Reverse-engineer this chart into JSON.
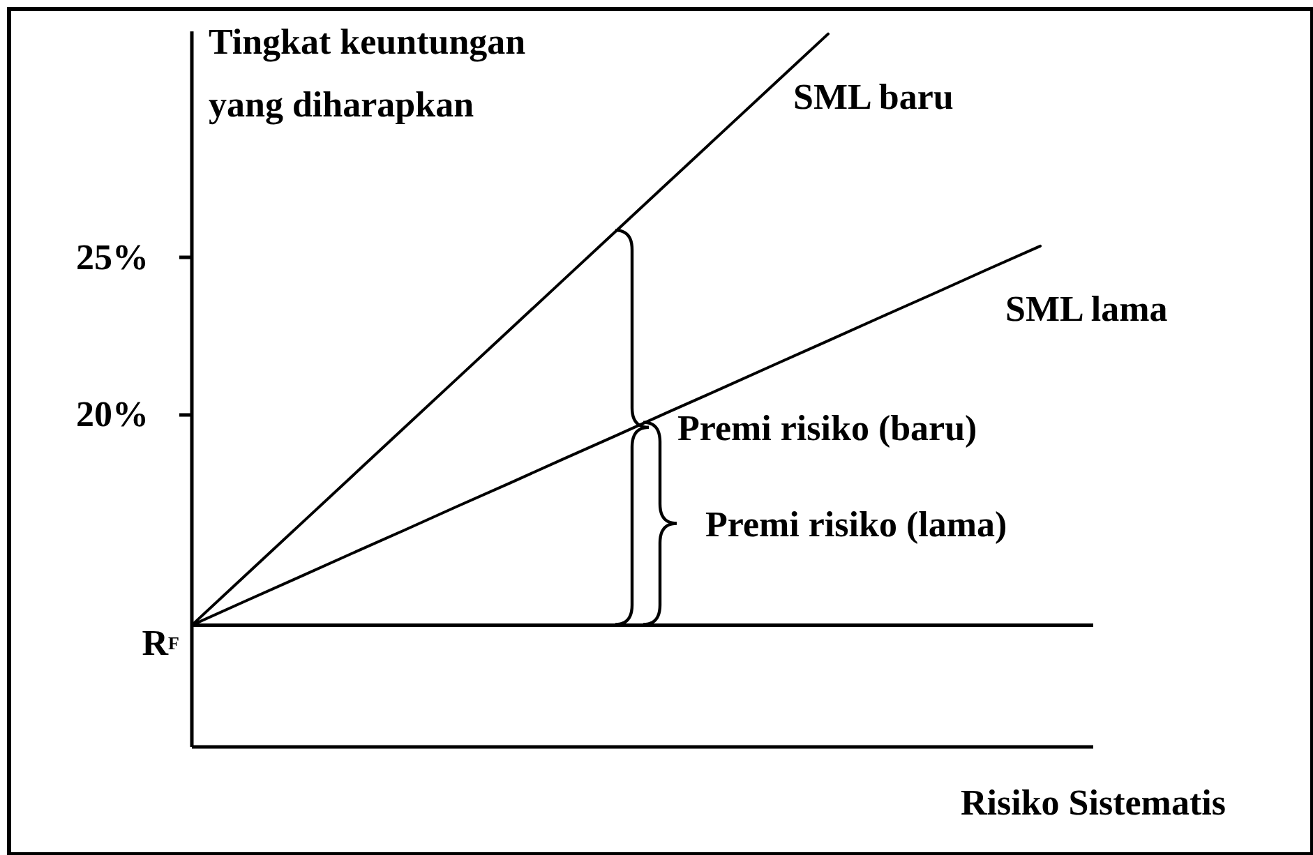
{
  "chart_data": {
    "type": "line",
    "ylabel": "Tingkat keuntungan yang diharapkan",
    "xlabel": "Risiko Sistematis",
    "categories": [
      null,
      null,
      null,
      null,
      null,
      null,
      null,
      null,
      null,
      null,
      null,
      null,
      null,
      null,
      null,
      null,
      null,
      null
    ],
    "series": [
      {
        "name": "SML baru",
        "color": "#000000",
        "values": [
          13.28,
          14.85,
          16.42,
          17.99,
          19.56,
          21.13,
          22.7,
          24.27,
          25.84,
          27.41,
          28.98,
          30.55,
          32.12,
          null,
          null,
          null,
          null,
          null
        ]
      },
      {
        "name": "SML lama",
        "color": "#000000",
        "values": [
          13.28,
          14.04,
          14.79,
          15.55,
          16.3,
          17.06,
          17.81,
          18.57,
          19.32,
          20.08,
          20.83,
          21.59,
          22.34,
          23.1,
          23.85,
          24.61,
          25.36,
          null
        ]
      }
    ],
    "ylim": [
      9.4,
      32.2
    ],
    "yticks": [
      {
        "value": 25,
        "label": "25%"
      },
      {
        "value": 20,
        "label": "20%"
      }
    ],
    "tick_labels": "y",
    "ref_lines": [
      {
        "axis": "y",
        "value": 13.28,
        "label": "R$_{F}$",
        "color": "#000000"
      }
    ],
    "annotations": [
      "Premi risiko  (baru)",
      "Premi risiko (lama)"
    ]
  }
}
